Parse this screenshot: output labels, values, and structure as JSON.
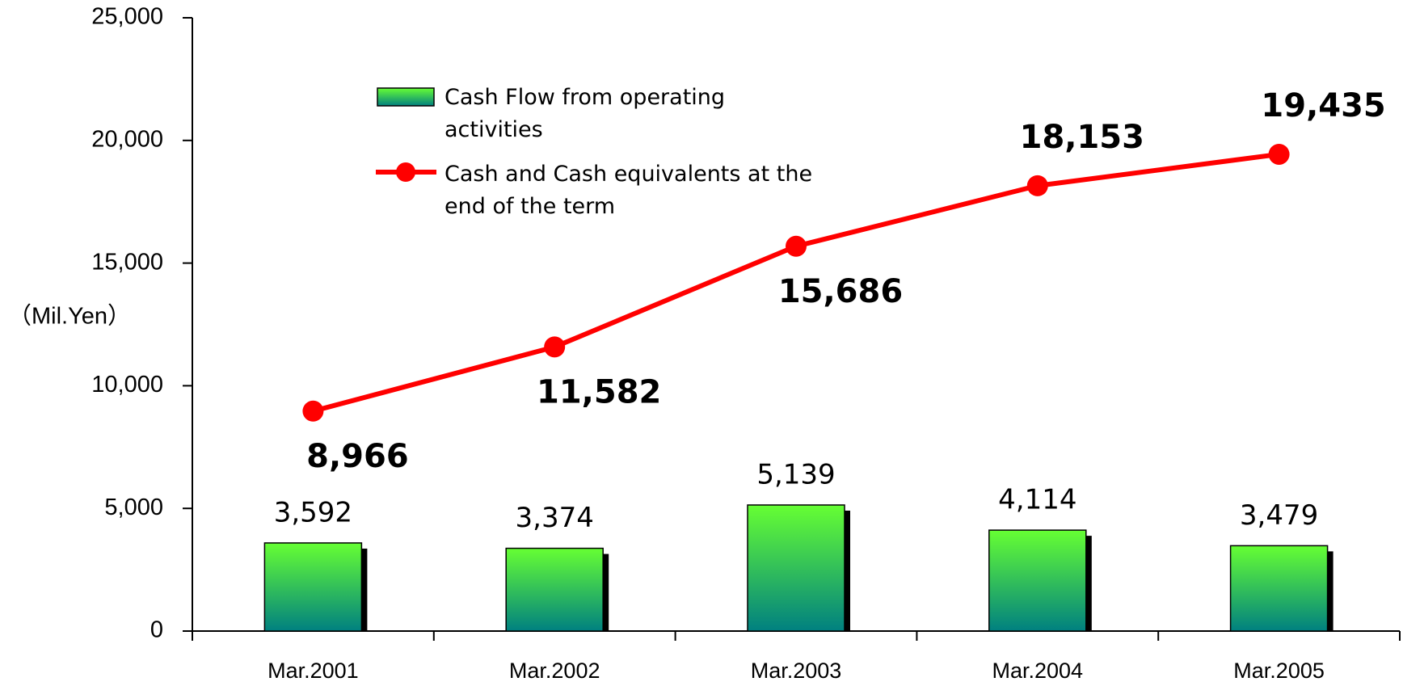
{
  "chart_data": {
    "type": "bar_line",
    "y_label": "（Mil.Yen）",
    "categories": [
      "Mar.2001",
      "Mar.2002",
      "Mar.2003",
      "Mar.2004",
      "Mar.2005"
    ],
    "series": [
      {
        "name": "Cash Flow from operating activities",
        "type": "bar",
        "color": "#66ff33",
        "values": [
          3592,
          3374,
          5139,
          4114,
          3479
        ],
        "value_labels": [
          "3,592",
          "3,374",
          "5,139",
          "4,114",
          "3,479"
        ]
      },
      {
        "name": "Cash and Cash equivalents at the end of the term",
        "type": "line",
        "color": "#ff0000",
        "values": [
          8966,
          11582,
          15686,
          18153,
          19435
        ],
        "value_labels": [
          "8,966",
          "11,582",
          "15,686",
          "18,153",
          "19,435"
        ]
      }
    ],
    "ylim": [
      0,
      25000
    ],
    "yticks": [
      0,
      {
        "value": 5000,
        "label": "5,000"
      },
      {
        "value": 10000,
        "label": "10,000"
      },
      {
        "value": 15000,
        "label": "15,000"
      },
      {
        "value": 20000,
        "label": "20,000"
      },
      {
        "value": 25000,
        "label": "25,000"
      }
    ],
    "grid": false
  }
}
